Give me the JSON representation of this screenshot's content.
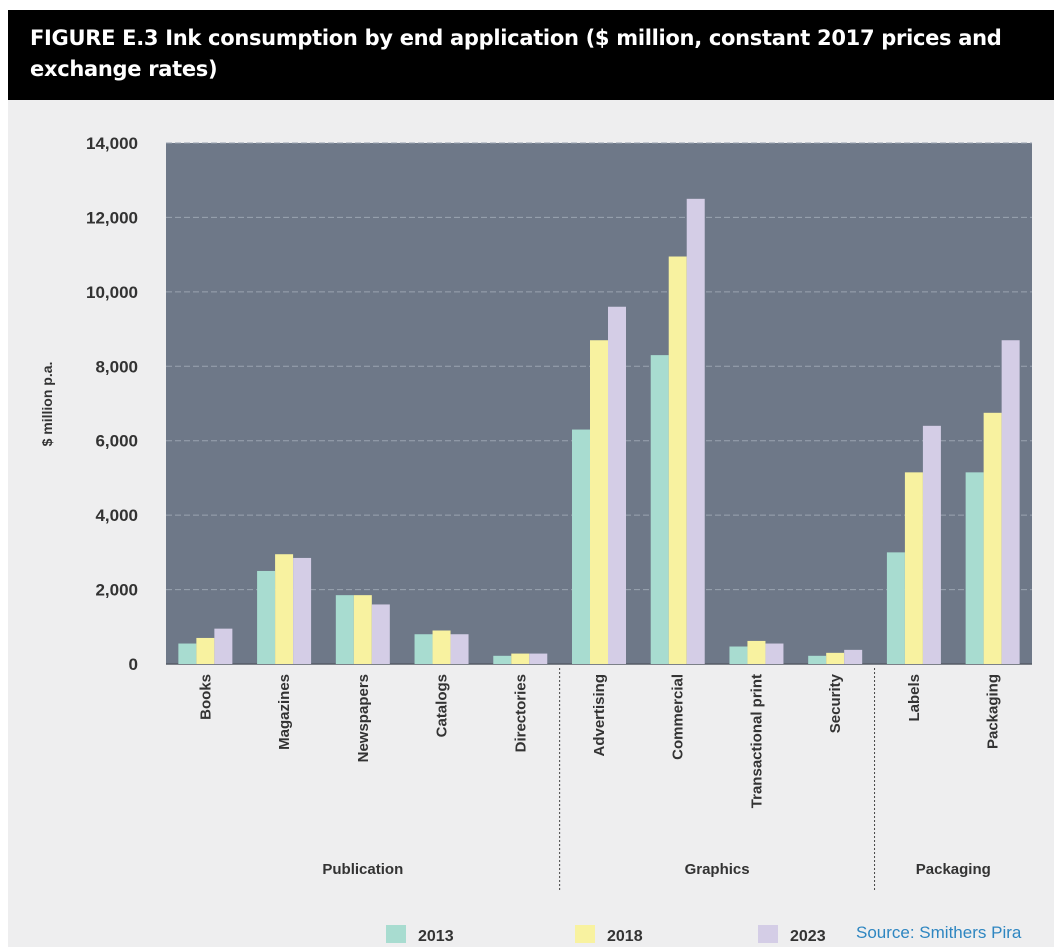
{
  "figure": {
    "title": "FIGURE E.3 Ink consumption by end application ($ million, constant 2017 prices and exchange rates)",
    "source": "Source: Smithers Pira"
  },
  "colors": {
    "plot_bg": "#6e7888",
    "page_bg": "#eeeeef",
    "s2013": "#a8dcd0",
    "s2018": "#f8f2a0",
    "s2023": "#d4cde6"
  },
  "chart_data": {
    "type": "bar",
    "ylabel": "$ million p.a.",
    "xlabel": "",
    "ylim": [
      0,
      14000
    ],
    "yticks": [
      0,
      2000,
      4000,
      6000,
      8000,
      10000,
      12000,
      14000
    ],
    "ytick_labels": [
      "0",
      "2,000",
      "4,000",
      "6,000",
      "8,000",
      "10,000",
      "12,000",
      "14,000"
    ],
    "grid": true,
    "legend": "bottom",
    "categories": [
      "Books",
      "Magazines",
      "Newspapers",
      "Catalogs",
      "Directories",
      "Advertising",
      "Commercial",
      "Transactional print",
      "Security",
      "Labels",
      "Packaging"
    ],
    "groups": [
      {
        "label": "Publication",
        "categories": [
          "Books",
          "Magazines",
          "Newspapers",
          "Catalogs",
          "Directories"
        ]
      },
      {
        "label": "Graphics",
        "categories": [
          "Advertising",
          "Commercial",
          "Transactional print",
          "Security"
        ]
      },
      {
        "label": "Packaging",
        "categories": [
          "Labels",
          "Packaging"
        ]
      }
    ],
    "series": [
      {
        "name": "2013",
        "values": [
          550,
          2500,
          1850,
          800,
          220,
          6300,
          8300,
          470,
          220,
          3000,
          5150
        ]
      },
      {
        "name": "2018",
        "values": [
          700,
          2950,
          1850,
          900,
          280,
          8700,
          10950,
          620,
          300,
          5150,
          6750
        ]
      },
      {
        "name": "2023",
        "values": [
          950,
          2850,
          1600,
          800,
          280,
          9600,
          12500,
          550,
          380,
          6400,
          8700
        ]
      }
    ]
  }
}
